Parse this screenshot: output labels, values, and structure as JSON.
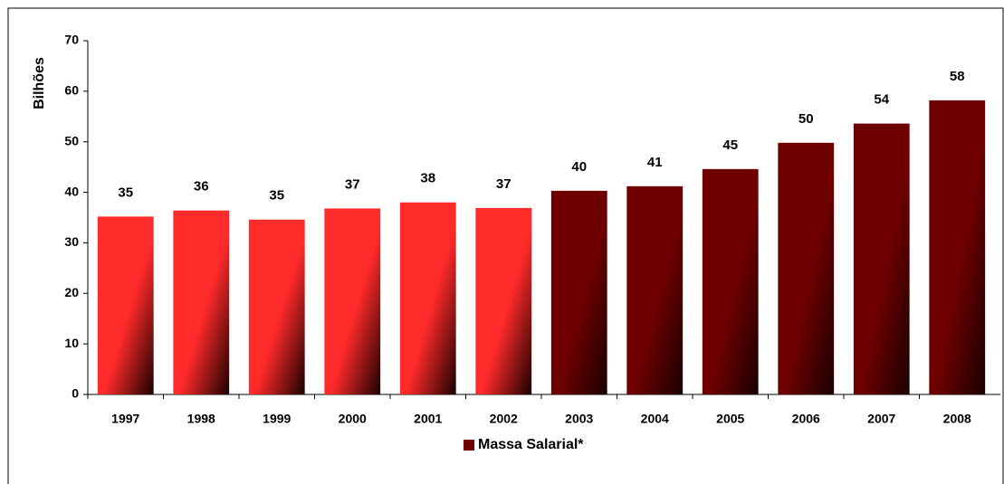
{
  "chart_data": {
    "type": "bar",
    "y_label": "Bilhões",
    "categories": [
      "1997",
      "1998",
      "1999",
      "2000",
      "2001",
      "2002",
      "2003",
      "2004",
      "2005",
      "2006",
      "2007",
      "2008"
    ],
    "series": [
      {
        "name": "Massa Salarial*",
        "color": "#6e0000",
        "colors": [
          "#ff2a2a",
          "#ff2a2a",
          "#ff2a2a",
          "#ff2a2a",
          "#ff2a2a",
          "#ff2a2a",
          "#6e0000",
          "#6e0000",
          "#6e0000",
          "#6e0000",
          "#6e0000",
          "#6e0000"
        ],
        "values": [
          35.2,
          36.4,
          34.6,
          36.8,
          38,
          36.9,
          40.3,
          41.2,
          44.6,
          49.8,
          53.6,
          58.2
        ],
        "value_labels": [
          "35",
          "36",
          "35",
          "37",
          "38",
          "37",
          "40",
          "41",
          "45",
          "50",
          "54",
          "58"
        ]
      }
    ],
    "ylim": [
      0,
      70
    ],
    "yticks": [
      0,
      10,
      20,
      30,
      40,
      50,
      60,
      70
    ],
    "grid": false,
    "legend": "bottom"
  }
}
